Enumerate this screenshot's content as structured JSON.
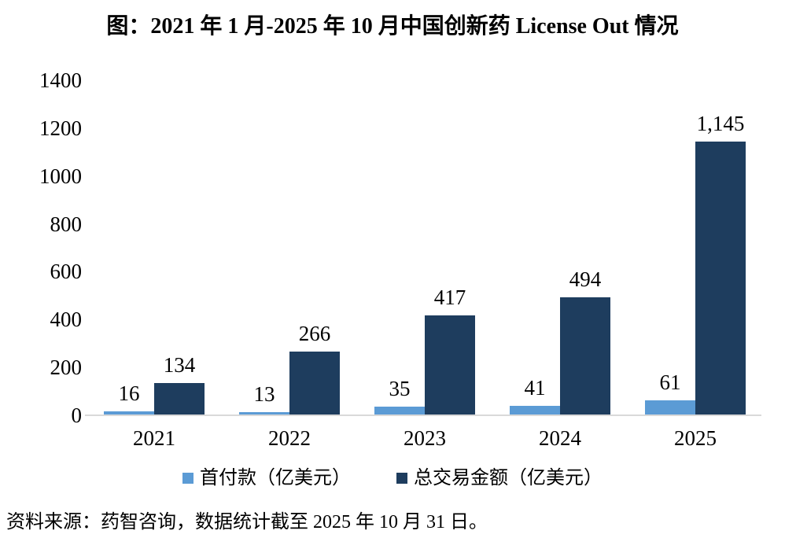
{
  "chart_data": {
    "type": "bar",
    "title": "图：2021 年 1 月-2025 年 10 月中国创新药 License Out 情况",
    "categories": [
      "2021",
      "2022",
      "2023",
      "2024",
      "2025"
    ],
    "series": [
      {
        "name": "首付款（亿美元）",
        "values": [
          16,
          13,
          35,
          41,
          61
        ],
        "labels": [
          "16",
          "13",
          "35",
          "41",
          "61"
        ],
        "color": "#5B9BD5"
      },
      {
        "name": "总交易金额（亿美元）",
        "values": [
          134,
          266,
          417,
          494,
          1145
        ],
        "labels": [
          "134",
          "266",
          "417",
          "494",
          "1,145"
        ],
        "color": "#1E3D5E"
      }
    ],
    "xlabel": "",
    "ylabel": "",
    "ylim": [
      0,
      1400
    ],
    "yticks": [
      0,
      200,
      400,
      600,
      800,
      1000,
      1200,
      1400
    ],
    "grid": false,
    "legend_position": "bottom",
    "axis_line_color": "#D9D9D9",
    "source": "资料来源：药智咨询，数据统计截至 2025 年 10 月 31 日。"
  }
}
